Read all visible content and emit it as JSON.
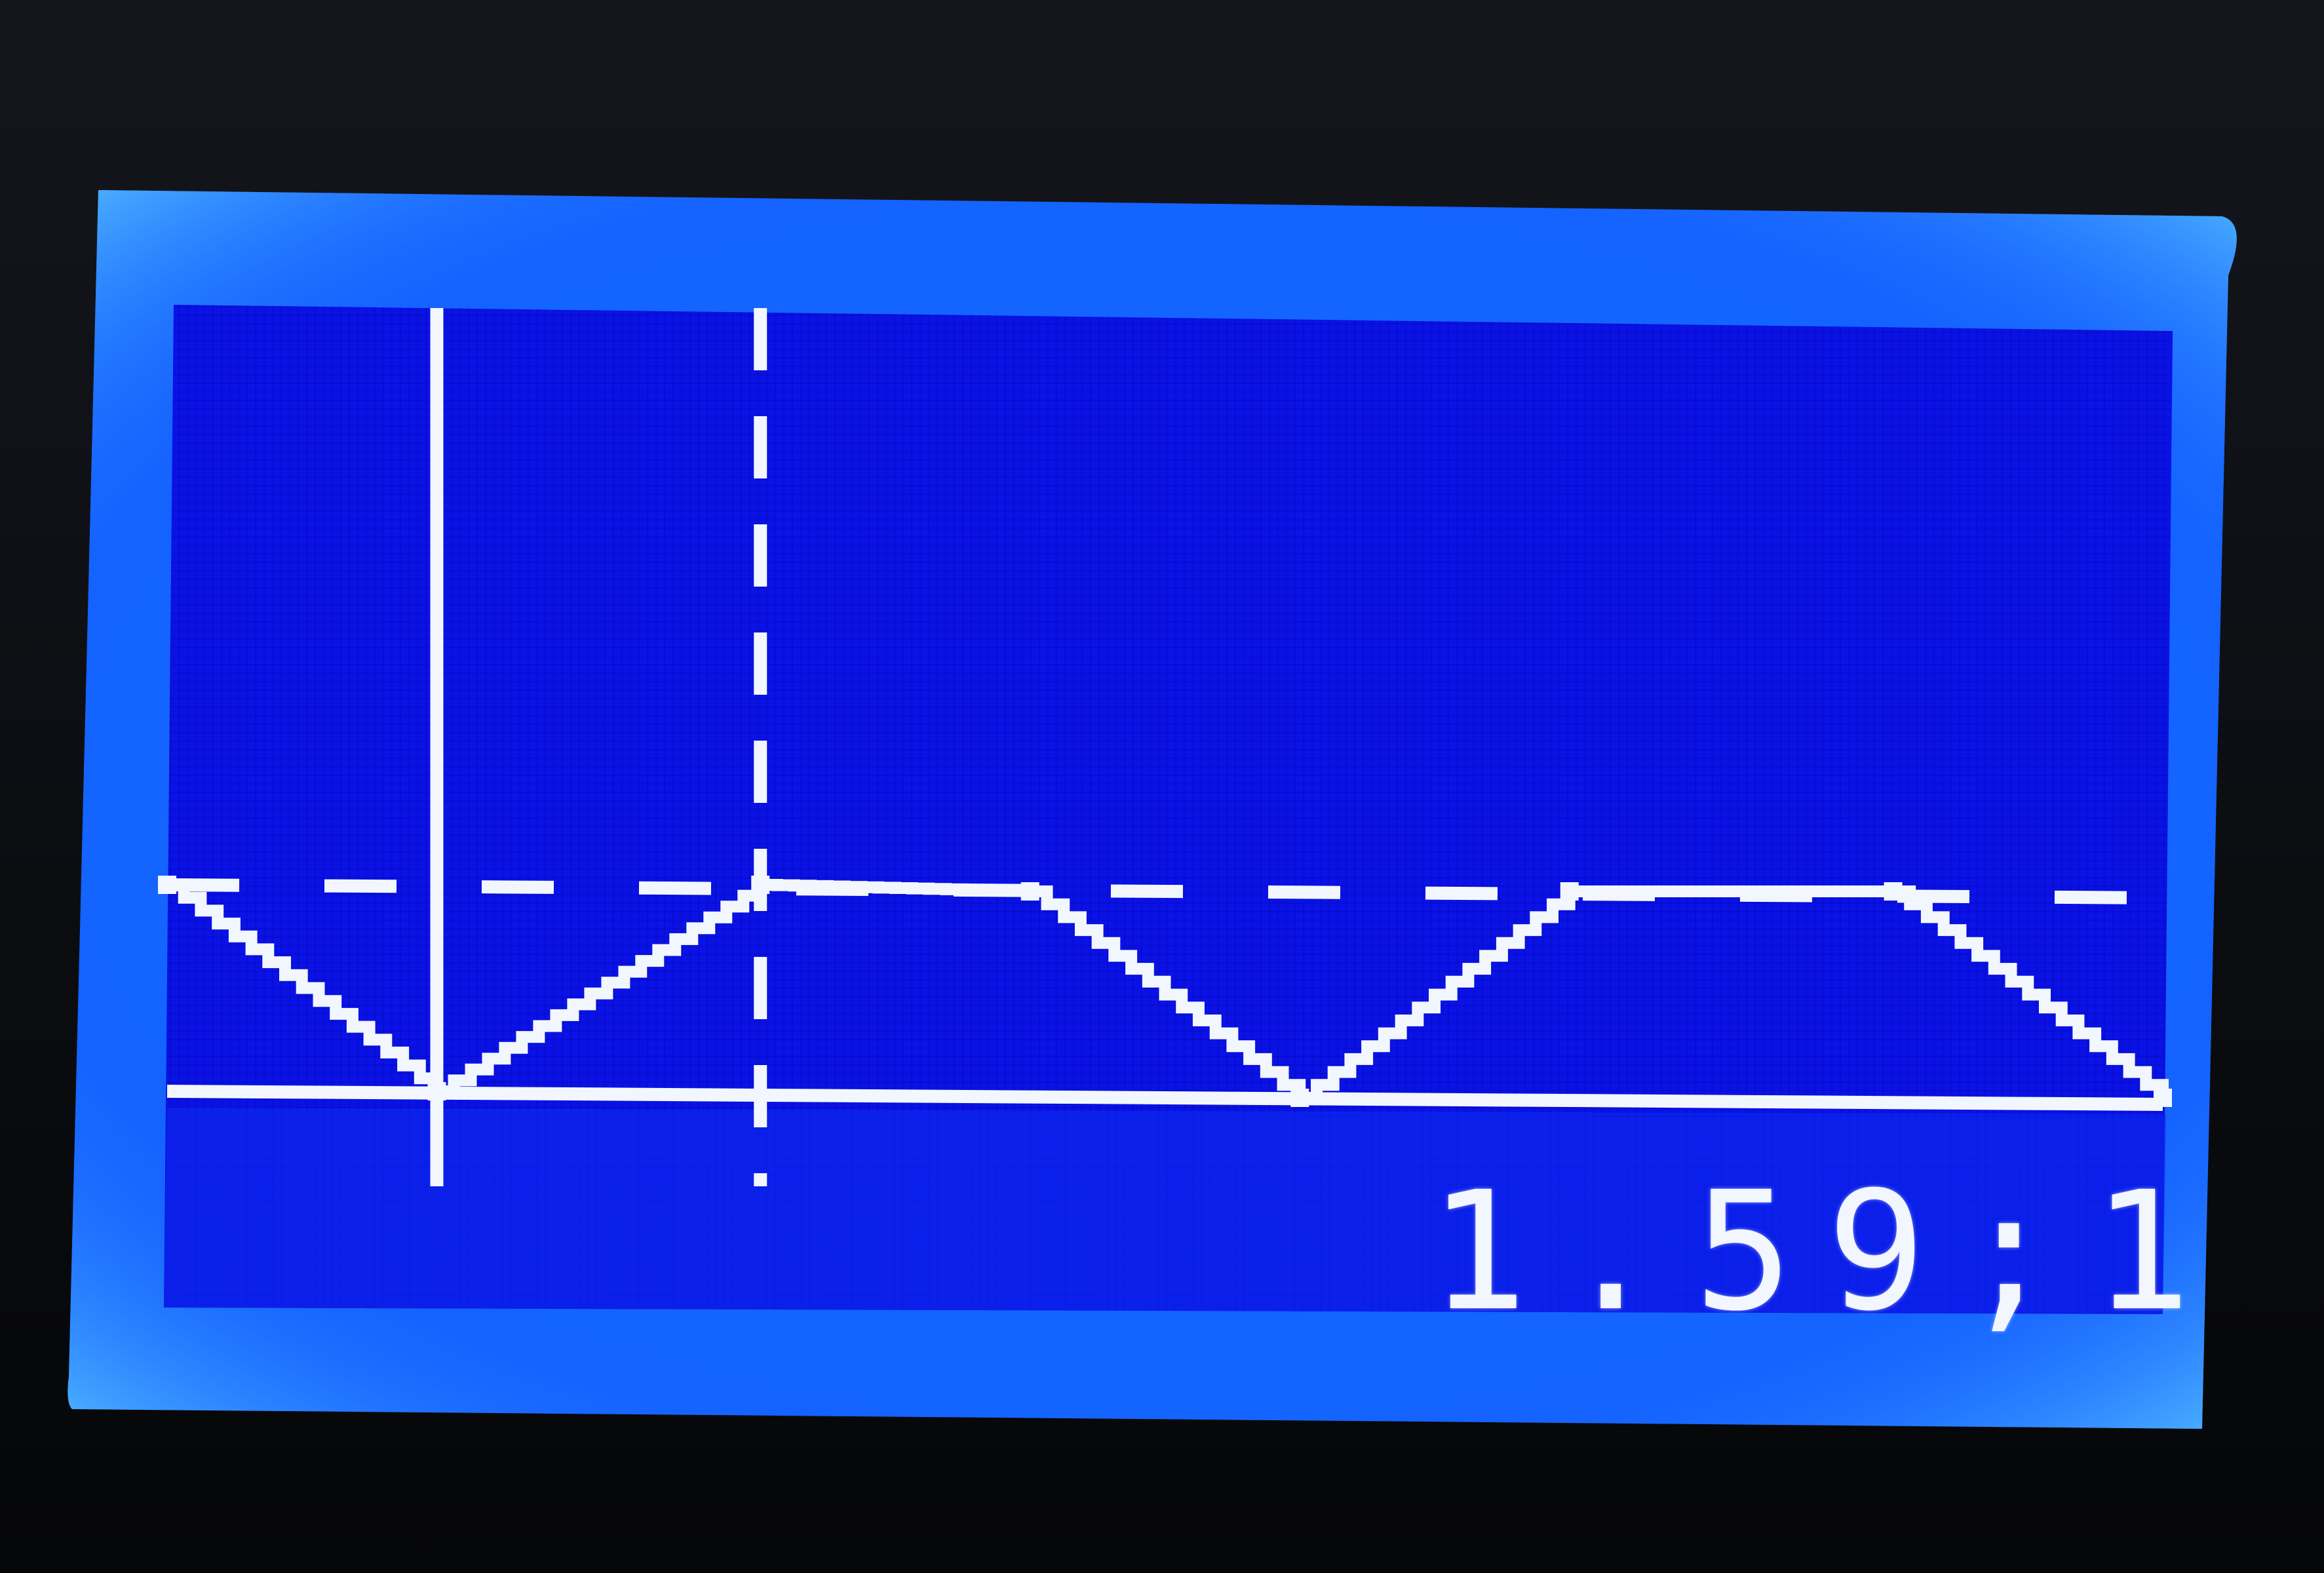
{
  "display": {
    "readout": "1.59;1",
    "colors": {
      "backlight": "#1464ff",
      "panel": "#0a12e6",
      "pixel_on": "#f2f6ff",
      "bezel": "#0b0d14"
    }
  },
  "chart_data": {
    "type": "line",
    "title": "",
    "xlabel": "",
    "ylabel": "",
    "grid": false,
    "x": [
      -1.0,
      0.0,
      1.2,
      2.2,
      3.2,
      4.2,
      5.4,
      6.4
    ],
    "series": [
      {
        "values": [
          1.0,
          0.0,
          1.0,
          1.0,
          0.0,
          1.0,
          1.0,
          0.0
        ]
      }
    ],
    "y_reference": 1.0,
    "cursors_x": [
      0.0,
      1.2
    ]
  }
}
